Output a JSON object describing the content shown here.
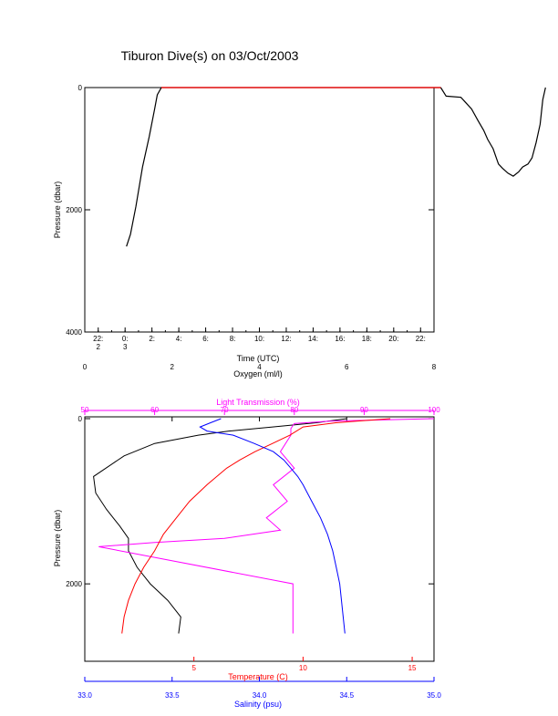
{
  "title": "Tiburon Dive(s) on 03/Oct/2003",
  "colors": {
    "axes": "#000000",
    "pressure_trace": "#000000",
    "surface_segment": "#ff0000",
    "oxygen": "#000000",
    "light_transmission": "#ff00ff",
    "temperature": "#ff0000",
    "salinity": "#0000ff"
  },
  "chart_data": [
    {
      "type": "line",
      "title": "Tiburon Dive(s) on 03/Oct/2003",
      "xlabel": "Time (UTC)",
      "ylabel": "Pressure (dbar)",
      "ylim": [
        4000,
        0
      ],
      "y_ticks": [
        "0",
        "2000",
        "4000"
      ],
      "x_ticks": [
        {
          "top": "22:",
          "bottom": "2"
        },
        {
          "top": "0:",
          "bottom": "3"
        },
        {
          "top": "2:",
          "bottom": ""
        },
        {
          "top": "4:",
          "bottom": ""
        },
        {
          "top": "6:",
          "bottom": ""
        },
        {
          "top": "8:",
          "bottom": ""
        },
        {
          "top": "10:",
          "bottom": ""
        },
        {
          "top": "12:",
          "bottom": ""
        },
        {
          "top": "14:",
          "bottom": ""
        },
        {
          "top": "16:",
          "bottom": ""
        },
        {
          "top": "18:",
          "bottom": ""
        },
        {
          "top": "20:",
          "bottom": ""
        },
        {
          "top": "22:",
          "bottom": ""
        }
      ],
      "x_hours_relative_to_2200_Oct02": [
        0,
        2,
        4,
        6,
        8,
        10,
        12,
        14,
        16,
        18,
        20,
        22,
        24
      ],
      "series": [
        {
          "x_hours_relative_to_2200_Oct02": [
            2.1,
            2.4,
            2.8,
            3.3,
            3.8,
            4.2,
            4.4,
            4.7,
            25.5
          ],
          "pressure": [
            2600,
            2400,
            1950,
            1300,
            800,
            350,
            120,
            0,
            0
          ]
        },
        {
          "x_hours_relative_to_2200_Oct02": [
            25.5,
            25.9,
            27.0,
            27.8,
            28.3,
            28.7,
            29.0,
            29.4,
            29.8,
            30.1,
            30.5,
            30.9,
            31.3,
            31.6,
            32.0,
            32.3,
            32.6,
            32.9,
            33.1,
            33.3
          ],
          "pressure": [
            0,
            140,
            160,
            350,
            550,
            700,
            850,
            1000,
            1250,
            1320,
            1400,
            1450,
            1380,
            1300,
            1250,
            1150,
            900,
            600,
            200,
            0
          ]
        }
      ]
    },
    {
      "type": "line",
      "ylabel": "Pressure (dbar)",
      "ylim": [
        2650,
        0
      ],
      "y_ticks": [
        "0",
        "2000"
      ],
      "axes": [
        {
          "name": "Oxygen (ml/l)",
          "position": "top",
          "ticks": [
            "0",
            "2",
            "4",
            "6",
            "8"
          ],
          "range": [
            0,
            8
          ]
        },
        {
          "name": "Light Transmission (%)",
          "position": "top",
          "ticks": [
            "50",
            "60",
            "70",
            "80",
            "90",
            "100"
          ],
          "range": [
            50,
            100
          ]
        },
        {
          "name": "Temperature (C)",
          "position": "bottom",
          "ticks": [
            "5",
            "10",
            "15"
          ],
          "range": [
            0,
            16
          ]
        },
        {
          "name": "Salinity (psu)",
          "position": "bottom",
          "ticks": [
            "33.0",
            "33.5",
            "34.0",
            "34.5",
            "35.0"
          ],
          "range": [
            33.0,
            35.0
          ]
        }
      ],
      "series": [
        {
          "name": "Oxygen (ml/l)",
          "pressure": [
            0,
            50,
            100,
            150,
            200,
            300,
            450,
            700,
            900,
            1100,
            1300,
            1450,
            1600,
            1800,
            2000,
            2200,
            2400,
            2600
          ],
          "values": [
            6.0,
            5.3,
            4.3,
            3.3,
            2.6,
            1.6,
            0.9,
            0.2,
            0.25,
            0.5,
            0.8,
            1.0,
            1.0,
            1.2,
            1.5,
            1.9,
            2.2,
            2.15
          ]
        },
        {
          "name": "Light Transmission (%)",
          "pressure": [
            0,
            30,
            60,
            120,
            200,
            400,
            600,
            800,
            1000,
            1200,
            1350,
            1450,
            1500,
            1550,
            2000,
            2400,
            2600
          ],
          "values": [
            100,
            85,
            80,
            79.5,
            79.5,
            78,
            80,
            77,
            79,
            76,
            78,
            70,
            60,
            52,
            79.8,
            79.8,
            79.8
          ]
        },
        {
          "name": "Temperature (C)",
          "pressure": [
            0,
            50,
            100,
            200,
            300,
            400,
            500,
            600,
            800,
            1000,
            1200,
            1400,
            1600,
            1800,
            2000,
            2200,
            2400,
            2600
          ],
          "values": [
            14.0,
            11.5,
            10.0,
            9.4,
            8.6,
            7.8,
            7.1,
            6.5,
            5.6,
            4.8,
            4.2,
            3.6,
            3.2,
            2.7,
            2.3,
            2.0,
            1.8,
            1.7
          ]
        },
        {
          "name": "Salinity (psu)",
          "pressure": [
            0,
            50,
            100,
            150,
            200,
            300,
            400,
            500,
            600,
            700,
            800,
            1000,
            1200,
            1400,
            1600,
            1800,
            2000,
            2200,
            2400,
            2600
          ],
          "values": [
            33.78,
            33.72,
            33.66,
            33.7,
            33.85,
            33.97,
            34.08,
            34.14,
            34.18,
            34.22,
            34.25,
            34.3,
            34.35,
            34.39,
            34.42,
            34.44,
            34.46,
            34.47,
            34.48,
            34.49
          ]
        }
      ]
    }
  ]
}
